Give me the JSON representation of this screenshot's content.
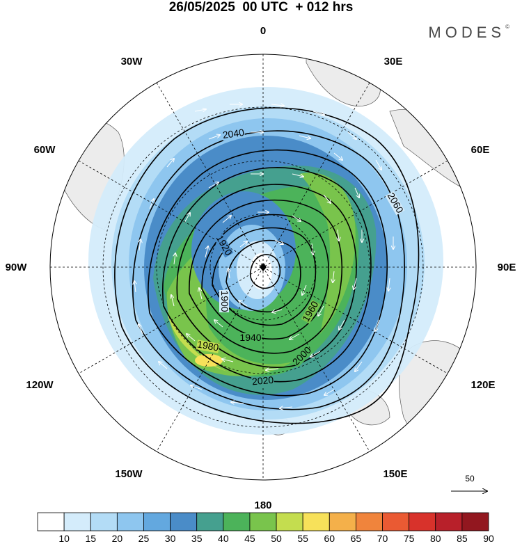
{
  "title": "26/05/2025  00 UTC  + 012 hrs",
  "brand": "MODES",
  "brand_mark": "©",
  "longitude_labels": [
    "0",
    "30E",
    "60E",
    "90E",
    "120E",
    "150E",
    "180",
    "150W",
    "120W",
    "90W",
    "60W",
    "30W"
  ],
  "contour_labels": [
    "1900",
    "1920",
    "1940",
    "1960",
    "1980",
    "2000",
    "2020",
    "2040",
    "2060"
  ],
  "reference_vector": "50",
  "colorbar": {
    "labels": [
      "10",
      "15",
      "20",
      "25",
      "30",
      "35",
      "40",
      "45",
      "50",
      "55",
      "60",
      "65",
      "70",
      "75",
      "80",
      "85",
      "90"
    ],
    "colors": [
      "#ffffff",
      "#d4ecfb",
      "#b3dcf6",
      "#8ec6ef",
      "#63a8df",
      "#4a8cc8",
      "#45a08f",
      "#4cb35a",
      "#79c44c",
      "#c4dd4f",
      "#f7e15a",
      "#f4b04a",
      "#f0843c",
      "#ea5a33",
      "#d8322b",
      "#b8202a",
      "#92171f"
    ]
  },
  "map_features": {
    "land_color": "#ececec",
    "jet_colors": [
      "#d4ecfb",
      "#8ec6ef",
      "#4a8cc8",
      "#4cb35a",
      "#c4dd4f",
      "#f7e15a"
    ]
  }
}
